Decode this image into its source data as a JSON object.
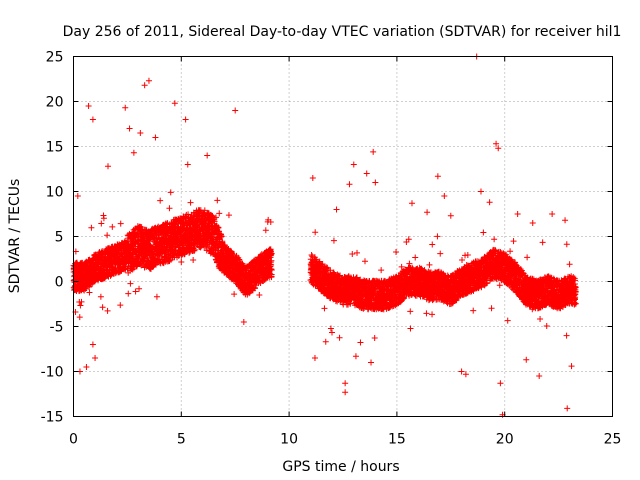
{
  "chart_data": {
    "type": "scatter",
    "title": "Day 256 of 2011, Sidereal Day-to-day VTEC variation (SDTVAR) for receiver hil1",
    "xlabel": "GPS time / hours",
    "ylabel": "SDTVAR / TECUs",
    "xlim": [
      0,
      25
    ],
    "ylim": [
      -15,
      25
    ],
    "x_ticks": [
      0,
      5,
      10,
      15,
      20,
      25
    ],
    "y_ticks": [
      -15,
      -10,
      -5,
      0,
      5,
      10,
      15,
      20,
      25
    ],
    "grid": true,
    "marker": "+",
    "series_color": "#ff0000",
    "series": [
      {
        "name": "SDTVAR",
        "band_description": "dense noisy trace; center values listed",
        "trend": [
          [
            0.0,
            0.5
          ],
          [
            0.5,
            0.5
          ],
          [
            1.0,
            1.5
          ],
          [
            1.5,
            2.0
          ],
          [
            2.0,
            2.5
          ],
          [
            2.5,
            3.0
          ],
          [
            3.0,
            4.0
          ],
          [
            3.5,
            3.5
          ],
          [
            4.0,
            4.0
          ],
          [
            4.5,
            4.5
          ],
          [
            5.0,
            5.0
          ],
          [
            5.5,
            5.5
          ],
          [
            6.0,
            6.0
          ],
          [
            6.5,
            5.0
          ],
          [
            7.0,
            2.5
          ],
          [
            7.5,
            1.5
          ],
          [
            8.0,
            0.0
          ],
          [
            8.5,
            1.0
          ],
          [
            9.0,
            2.0
          ],
          [
            9.2,
            2.0
          ],
          [
            11.0,
            1.5
          ],
          [
            11.5,
            0.5
          ],
          [
            12.0,
            -0.5
          ],
          [
            12.5,
            -1.0
          ],
          [
            13.0,
            -1.0
          ],
          [
            13.5,
            -1.5
          ],
          [
            14.0,
            -1.5
          ],
          [
            14.5,
            -1.5
          ],
          [
            15.0,
            -1.0
          ],
          [
            15.5,
            0.0
          ],
          [
            16.0,
            0.0
          ],
          [
            16.5,
            -0.5
          ],
          [
            17.0,
            -0.5
          ],
          [
            17.5,
            -1.0
          ],
          [
            18.0,
            0.0
          ],
          [
            18.5,
            0.5
          ],
          [
            19.0,
            1.0
          ],
          [
            19.5,
            2.0
          ],
          [
            20.0,
            1.5
          ],
          [
            20.5,
            0.5
          ],
          [
            21.0,
            -1.0
          ],
          [
            21.5,
            -1.5
          ],
          [
            22.0,
            -1.0
          ],
          [
            22.5,
            -1.5
          ],
          [
            23.0,
            -1.0
          ],
          [
            23.3,
            -1.0
          ]
        ],
        "outliers": [
          [
            0.2,
            9.5
          ],
          [
            0.3,
            -10.0
          ],
          [
            0.6,
            -9.5
          ],
          [
            0.7,
            19.5
          ],
          [
            0.9,
            18.0
          ],
          [
            0.9,
            -7.0
          ],
          [
            1.0,
            -8.5
          ],
          [
            1.6,
            12.8
          ],
          [
            2.4,
            19.3
          ],
          [
            2.6,
            17.0
          ],
          [
            2.8,
            14.3
          ],
          [
            3.1,
            16.5
          ],
          [
            3.3,
            21.8
          ],
          [
            3.5,
            22.3
          ],
          [
            3.8,
            16.0
          ],
          [
            4.7,
            19.8
          ],
          [
            5.2,
            18.0
          ],
          [
            5.3,
            13.0
          ],
          [
            6.2,
            14.0
          ],
          [
            7.5,
            19.0
          ],
          [
            7.9,
            -4.5
          ],
          [
            11.1,
            11.5
          ],
          [
            11.2,
            -8.5
          ],
          [
            11.7,
            -6.7
          ],
          [
            12.2,
            8.0
          ],
          [
            12.6,
            -11.3
          ],
          [
            12.6,
            -12.3
          ],
          [
            12.8,
            10.8
          ],
          [
            13.0,
            13.0
          ],
          [
            13.1,
            -8.3
          ],
          [
            13.6,
            12.0
          ],
          [
            13.8,
            -9.0
          ],
          [
            13.9,
            14.4
          ],
          [
            14.0,
            11.0
          ],
          [
            15.7,
            8.7
          ],
          [
            16.4,
            7.7
          ],
          [
            16.9,
            11.7
          ],
          [
            17.2,
            9.5
          ],
          [
            17.5,
            7.3
          ],
          [
            18.0,
            -10.0
          ],
          [
            18.2,
            -10.3
          ],
          [
            18.7,
            25.0
          ],
          [
            18.9,
            10.0
          ],
          [
            19.3,
            8.8
          ],
          [
            19.6,
            15.3
          ],
          [
            19.7,
            14.8
          ],
          [
            19.8,
            -11.3
          ],
          [
            19.9,
            -14.8
          ],
          [
            20.6,
            7.5
          ],
          [
            21.0,
            -8.7
          ],
          [
            21.3,
            6.5
          ],
          [
            21.6,
            -10.5
          ],
          [
            22.2,
            7.5
          ],
          [
            22.8,
            6.8
          ],
          [
            22.9,
            -14.1
          ],
          [
            23.1,
            -9.4
          ]
        ]
      }
    ]
  }
}
